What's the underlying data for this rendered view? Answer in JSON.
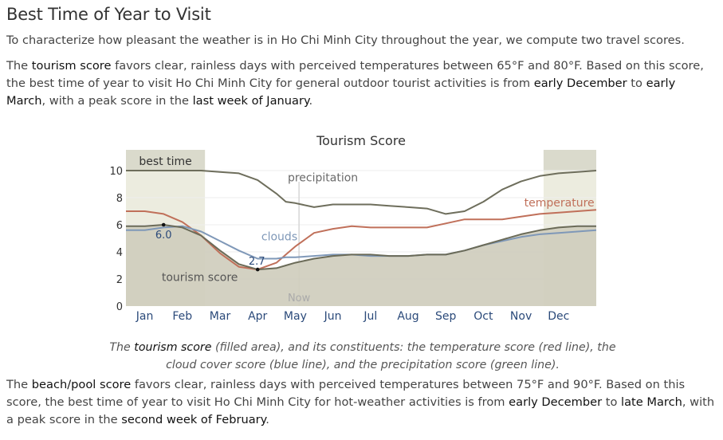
{
  "heading": "Best Time of Year to Visit",
  "intro": "To characterize how pleasant the weather is in Ho Chi Minh City throughout the year, we compute two travel scores.",
  "tourism_para": {
    "p1": "The ",
    "k1": "tourism score",
    "p2": " favors clear, rainless days with perceived temperatures between 65°F and 80°F. Based on this score, the best time of year to visit Ho Chi Minh City for general outdoor tourist activities is from ",
    "k2": "early December",
    "p3": " to ",
    "k3": "early March",
    "p4": ", with a peak score in the ",
    "k4": "last week of January",
    "p5": "."
  },
  "caption": {
    "p1": "The ",
    "k1": "tourism score",
    "p2": " (filled area), and its constituents: the temperature score (red line), the cloud cover score (blue line), and the precipitation score (green line)."
  },
  "beach_para": {
    "p1": "The ",
    "k1": "beach/pool score",
    "p2": " favors clear, rainless days with perceived temperatures between 75°F and 90°F. Based on this score, the best time of year to visit Ho Chi Minh City for hot-weather activities is from ",
    "k2": "early December",
    "p3": " to ",
    "k3": "late March",
    "p4": ", with a peak score in the ",
    "k4": "second week of February",
    "p5": "."
  },
  "chart_data": {
    "type": "area",
    "title": "Tourism Score",
    "x": [
      0.5,
      1.0,
      1.5,
      2.0,
      2.5,
      3.0,
      3.5,
      4.0,
      4.25,
      4.5,
      5.0,
      5.5,
      6.0,
      6.5,
      7.0,
      7.5,
      8.0,
      8.5,
      9.0,
      9.5,
      10.0,
      10.5,
      11.0,
      11.5,
      12.0,
      12.5
    ],
    "categories": [
      "Jan",
      "Feb",
      "Mar",
      "Apr",
      "May",
      "Jun",
      "Jul",
      "Aug",
      "Sep",
      "Oct",
      "Nov",
      "Dec"
    ],
    "ylim": [
      0,
      10
    ],
    "yticks": [
      0,
      2,
      4,
      6,
      8,
      10
    ],
    "series": [
      {
        "name": "tourism score",
        "color": "#6b6b58",
        "values": [
          5.9,
          6.0,
          5.8,
          5.2,
          4.1,
          3.1,
          2.7,
          2.8,
          3.0,
          3.2,
          3.5,
          3.7,
          3.8,
          3.8,
          3.7,
          3.7,
          3.8,
          3.8,
          4.1,
          4.5,
          4.9,
          5.3,
          5.6,
          5.8,
          5.9,
          5.9
        ]
      },
      {
        "name": "temperature",
        "color": "#c0705a",
        "values": [
          7.0,
          6.8,
          6.2,
          5.2,
          3.9,
          2.9,
          2.7,
          3.2,
          3.8,
          4.4,
          5.4,
          5.7,
          5.9,
          5.8,
          5.8,
          5.8,
          5.8,
          6.1,
          6.4,
          6.4,
          6.4,
          6.6,
          6.8,
          6.9,
          7.0,
          7.1
        ]
      },
      {
        "name": "clouds",
        "color": "#7f98b8",
        "values": [
          5.6,
          5.8,
          5.9,
          5.5,
          4.8,
          4.1,
          3.5,
          3.5,
          3.6,
          3.6,
          3.7,
          3.8,
          3.8,
          3.7,
          3.7,
          3.7,
          3.8,
          3.8,
          4.1,
          4.5,
          4.8,
          5.1,
          5.3,
          5.4,
          5.5,
          5.6
        ]
      },
      {
        "name": "precipitation",
        "color": "#6e6e5c",
        "values": [
          10.0,
          10.0,
          10.0,
          10.0,
          9.9,
          9.8,
          9.3,
          8.3,
          7.7,
          7.6,
          7.3,
          7.5,
          7.5,
          7.5,
          7.4,
          7.3,
          7.2,
          6.8,
          7.0,
          7.7,
          8.6,
          9.2,
          9.6,
          9.8,
          9.9,
          10.0
        ]
      }
    ],
    "best_time_label": "best time",
    "best_time_ranges": [
      [
        0,
        2.1
      ],
      [
        11.1,
        12.5
      ]
    ],
    "now_label": "Now",
    "now_x": 4.6,
    "annotations": [
      {
        "label": "6.0",
        "x": 1.0,
        "y": 6.0
      },
      {
        "label": "2.7",
        "x": 3.5,
        "y": 2.7
      }
    ],
    "series_labels": {
      "precipitation": "precipitation",
      "temperature": "temperature",
      "clouds": "clouds",
      "tourism": "tourism score"
    },
    "colors": {
      "area_fill": "#cfcdbd",
      "best_band": "#ececdf",
      "best_band_dark": "#dadacc",
      "grid": "#eeeeee",
      "month_label": "#2b4a7a"
    }
  }
}
